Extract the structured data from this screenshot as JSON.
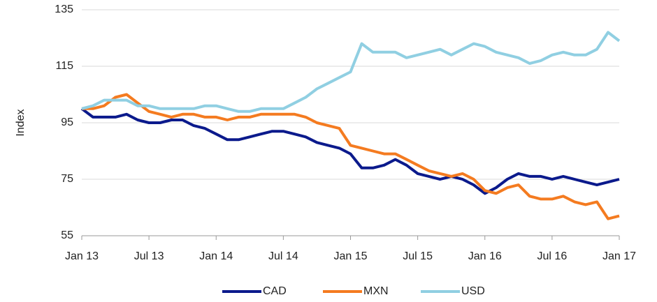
{
  "chart_data": {
    "type": "line",
    "y_label": "Index",
    "x": [
      "2013-01",
      "2013-02",
      "2013-03",
      "2013-04",
      "2013-05",
      "2013-06",
      "2013-07",
      "2013-08",
      "2013-09",
      "2013-10",
      "2013-11",
      "2013-12",
      "2014-01",
      "2014-02",
      "2014-03",
      "2014-04",
      "2014-05",
      "2014-06",
      "2014-07",
      "2014-08",
      "2014-09",
      "2014-10",
      "2014-11",
      "2014-12",
      "2015-01",
      "2015-02",
      "2015-03",
      "2015-04",
      "2015-05",
      "2015-06",
      "2015-07",
      "2015-08",
      "2015-09",
      "2015-10",
      "2015-11",
      "2015-12",
      "2016-01",
      "2016-02",
      "2016-03",
      "2016-04",
      "2016-05",
      "2016-06",
      "2016-07",
      "2016-08",
      "2016-09",
      "2016-10",
      "2016-11",
      "2016-12",
      "2017-01"
    ],
    "xticks": [
      {
        "value": "2013-01",
        "label": "Jan 13"
      },
      {
        "value": "2013-07",
        "label": "Jul 13"
      },
      {
        "value": "2014-01",
        "label": "Jan 14"
      },
      {
        "value": "2014-07",
        "label": "Jul 14"
      },
      {
        "value": "2015-01",
        "label": "Jan 15"
      },
      {
        "value": "2015-07",
        "label": "Jul 15"
      },
      {
        "value": "2016-01",
        "label": "Jan 16"
      },
      {
        "value": "2016-07",
        "label": "Jul 16"
      },
      {
        "value": "2017-01",
        "label": "Jan 17"
      }
    ],
    "ylim": [
      55,
      135
    ],
    "yticks": [
      55,
      75,
      95,
      115,
      135
    ],
    "grid": true,
    "legend": "bottom",
    "series": [
      {
        "name": "CAD",
        "color": "#0b1a8c",
        "values": [
          100,
          97,
          97,
          97,
          98,
          96,
          95,
          95,
          96,
          96,
          94,
          93,
          91,
          89,
          89,
          90,
          91,
          92,
          92,
          91,
          90,
          88,
          87,
          86,
          84,
          79,
          79,
          80,
          82,
          80,
          77,
          76,
          75,
          76,
          75,
          73,
          70,
          72,
          75,
          77,
          76,
          76,
          75,
          76,
          75,
          74,
          73,
          74,
          75
        ]
      },
      {
        "name": "MXN",
        "color": "#f47b20",
        "values": [
          100,
          100,
          101,
          104,
          105,
          102,
          99,
          98,
          97,
          98,
          98,
          97,
          97,
          96,
          97,
          97,
          98,
          98,
          98,
          98,
          97,
          95,
          94,
          93,
          87,
          86,
          85,
          84,
          84,
          82,
          80,
          78,
          77,
          76,
          77,
          75,
          71,
          70,
          72,
          73,
          69,
          68,
          68,
          69,
          67,
          66,
          67,
          61,
          62
        ]
      },
      {
        "name": "USD",
        "color": "#90cfe2",
        "values": [
          100,
          101,
          103,
          103,
          103,
          101,
          101,
          100,
          100,
          100,
          100,
          101,
          101,
          100,
          99,
          99,
          100,
          100,
          100,
          102,
          104,
          107,
          109,
          111,
          113,
          123,
          120,
          120,
          120,
          118,
          119,
          120,
          121,
          119,
          121,
          123,
          122,
          120,
          119,
          118,
          116,
          117,
          119,
          120,
          119,
          119,
          121,
          127,
          124
        ]
      }
    ]
  }
}
